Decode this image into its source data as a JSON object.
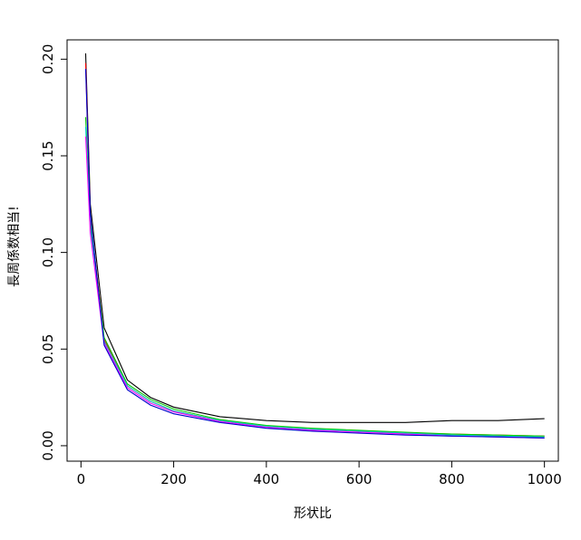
{
  "chart_data": {
    "type": "line",
    "title": "",
    "xlabel": "形状比",
    "ylabel": "長周係数相当!",
    "xlim": [
      -30,
      1030
    ],
    "ylim": [
      -0.008,
      0.21
    ],
    "x_ticks": [
      0,
      200,
      400,
      600,
      800,
      1000
    ],
    "y_ticks": [
      0.0,
      0.05,
      0.1,
      0.15,
      0.2
    ],
    "x_tick_labels": [
      "0",
      "200",
      "400",
      "600",
      "800",
      "1000"
    ],
    "y_tick_labels": [
      "0.00",
      "0.05",
      "0.10",
      "0.15",
      "0.20"
    ],
    "grid": false,
    "legend": "none",
    "x": [
      10,
      20,
      50,
      100,
      150,
      200,
      300,
      400,
      500,
      600,
      700,
      800,
      900,
      1000
    ],
    "series": [
      {
        "color": "#000000",
        "values": [
          0.203,
          0.125,
          0.061,
          0.034,
          0.025,
          0.02,
          0.015,
          0.013,
          0.012,
          0.012,
          0.012,
          0.013,
          0.013,
          0.014
        ]
      },
      {
        "color": "#ff0000",
        "values": [
          0.198,
          0.118,
          0.055,
          0.031,
          0.023,
          0.018,
          0.013,
          0.01,
          0.0085,
          0.0075,
          0.0065,
          0.006,
          0.0055,
          0.005
        ]
      },
      {
        "color": "#00cc00",
        "values": [
          0.17,
          0.115,
          0.056,
          0.032,
          0.024,
          0.019,
          0.0135,
          0.0105,
          0.009,
          0.008,
          0.007,
          0.006,
          0.0055,
          0.005
        ]
      },
      {
        "color": "#00cccc",
        "values": [
          0.165,
          0.113,
          0.054,
          0.031,
          0.023,
          0.018,
          0.013,
          0.01,
          0.0085,
          0.0075,
          0.0065,
          0.0055,
          0.005,
          0.0045
        ]
      },
      {
        "color": "#ff00ff",
        "values": [
          0.16,
          0.11,
          0.053,
          0.03,
          0.022,
          0.0175,
          0.0125,
          0.0095,
          0.008,
          0.007,
          0.006,
          0.005,
          0.0045,
          0.004
        ]
      },
      {
        "color": "#0000cc",
        "values": [
          0.195,
          0.12,
          0.052,
          0.029,
          0.021,
          0.0165,
          0.012,
          0.009,
          0.0075,
          0.0065,
          0.0055,
          0.005,
          0.0045,
          0.004
        ]
      }
    ]
  }
}
